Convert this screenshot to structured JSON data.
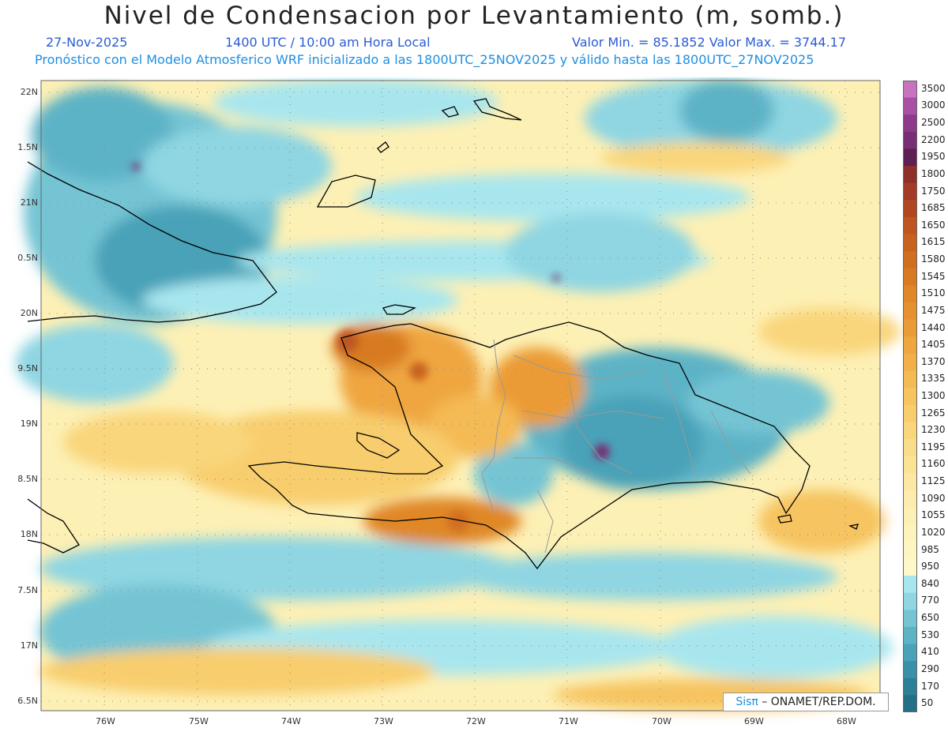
{
  "header": {
    "title": "Nivel de Condensacion por Levantamiento (m, somb.)",
    "date": "27-Nov-2025",
    "time": "1400 UTC / 10:00 am Hora Local",
    "minmax": "Valor Min. = 85.1852   Valor Max. = 3744.17",
    "subtitle": "Pronóstico con el Modelo Atmosferico WRF inicializado a las 1800UTC_25NOV2025 y válido hasta las   1800UTC_27NOV2025"
  },
  "credit": {
    "brand": "Sisπ",
    "text": " – ONAMET/REP.DOM."
  },
  "axes": {
    "lat_labels": [
      "22N",
      "1.5N",
      "21N",
      "0.5N",
      "20N",
      "9.5N",
      "19N",
      "8.5N",
      "18N",
      "7.5N",
      "17N",
      "6.5N"
    ],
    "lon_labels": [
      "76W",
      "75W",
      "74W",
      "73W",
      "72W",
      "71W",
      "70W",
      "69W",
      "68W"
    ]
  },
  "colorbar": {
    "labels": [
      "3500",
      "3000",
      "2500",
      "2200",
      "1950",
      "1800",
      "1750",
      "1685",
      "1650",
      "1615",
      "1580",
      "1545",
      "1510",
      "1475",
      "1440",
      "1405",
      "1370",
      "1335",
      "1300",
      "1265",
      "1230",
      "1195",
      "1160",
      "1125",
      "1090",
      "1055",
      "1020",
      "985",
      "950",
      "840",
      "770",
      "650",
      "530",
      "410",
      "290",
      "170",
      "50"
    ],
    "colors": [
      "#c872c0",
      "#a94fa4",
      "#8d3a8a",
      "#772e74",
      "#5e1f52",
      "#8e2f2a",
      "#a33c26",
      "#b04720",
      "#bd5620",
      "#c8621f",
      "#d06f20",
      "#d87a22",
      "#e08727",
      "#e69130",
      "#eb9b36",
      "#efa63f",
      "#f2b048",
      "#f4ba54",
      "#f6c460",
      "#f8cd6d",
      "#f9d67c",
      "#fadd8a",
      "#fbe396",
      "#fce8a2",
      "#fdecad",
      "#fdf0b5",
      "#fdf3bc",
      "#fef6c2",
      "#fef8c8",
      "#a8e6ee",
      "#8fd6e2",
      "#75c4d4",
      "#5db3c6",
      "#4aa2b8",
      "#3a90a8",
      "#2e7f98",
      "#236f88"
    ]
  }
}
